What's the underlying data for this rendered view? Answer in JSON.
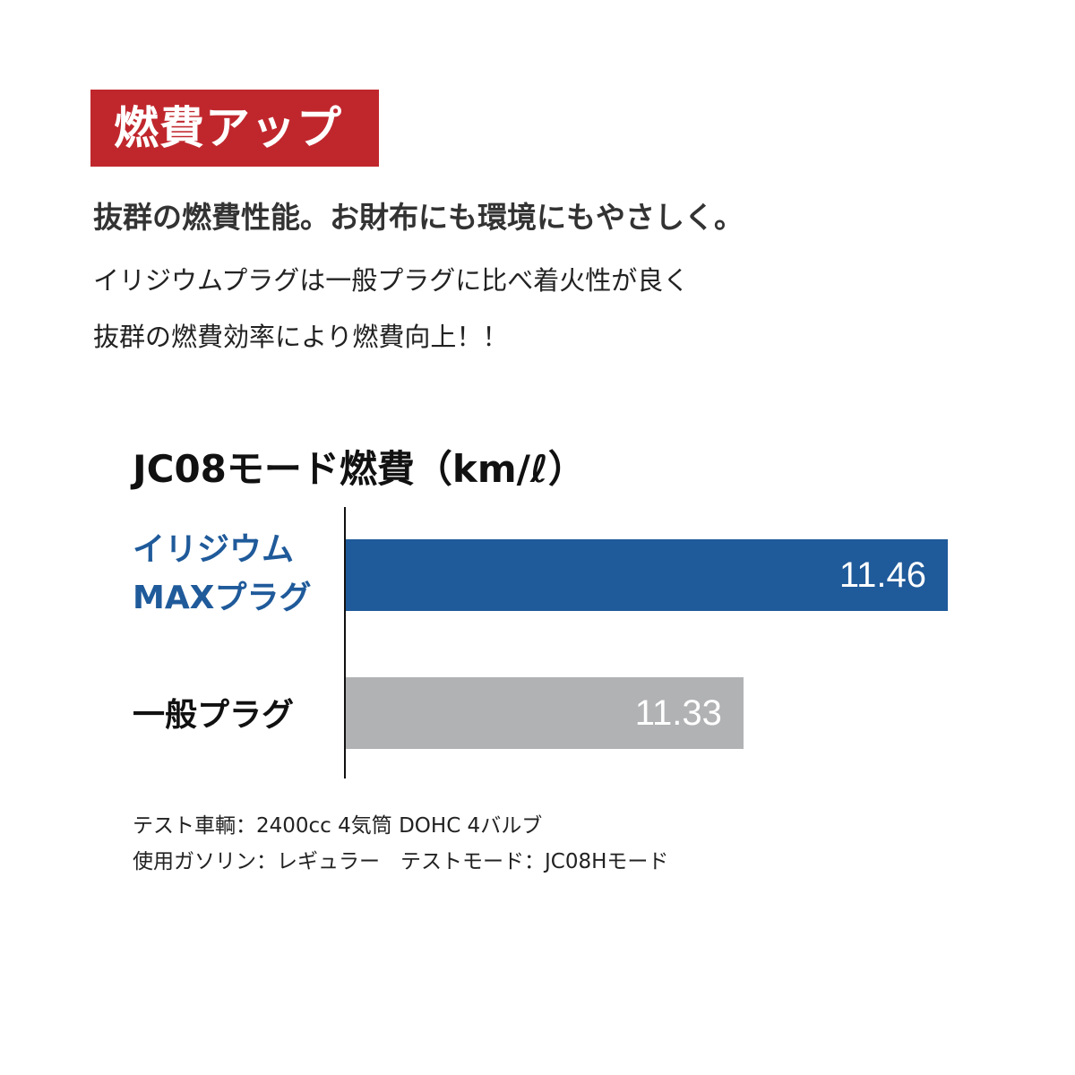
{
  "header": {
    "badge": "燃費アップ",
    "lead": "抜群の燃費性能。お財布にも環境にもやさしく。",
    "body": [
      "イリジウムプラグは一般プラグに比べ着火性が良く",
      "抜群の燃費効率により燃費向上！！"
    ]
  },
  "chart_data": {
    "type": "bar",
    "orientation": "horizontal",
    "title": "JC08モード燃費（km/ℓ）",
    "categories": [
      "イリジウムMAXプラグ",
      "一般プラグ"
    ],
    "category_lines": [
      [
        "イリジウム",
        "MAXプラグ"
      ],
      [
        "一般プラグ"
      ]
    ],
    "values": [
      11.46,
      11.33
    ],
    "value_labels": [
      "11.46",
      "11.33"
    ],
    "xlim": [
      11.077,
      11.46
    ],
    "grid": false,
    "colors": [
      "#1f5a9a",
      "#b1b2b4"
    ],
    "label_colors": [
      "#1f5a9a",
      "#111111"
    ]
  },
  "notes": [
    "テスト車輌：2400cc 4気筒 DOHC 4バルブ",
    "使用ガソリン：レギュラー　テストモード：JC08Hモード"
  ]
}
